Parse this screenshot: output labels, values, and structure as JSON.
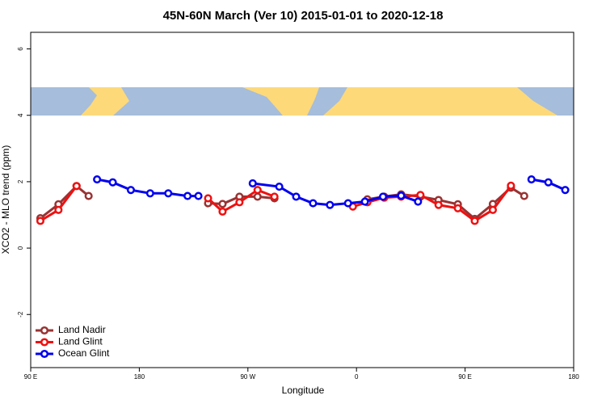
{
  "chart_data": {
    "type": "line",
    "title": "45N-60N March (Ver 10)   2015-01-01 to 2020-12-18",
    "x_label": "Longitude",
    "y_label": "XCO2 - MLO trend (ppm)",
    "xlim": [
      90,
      540
    ],
    "ylim": [
      -3.6,
      6.5
    ],
    "xticks": [
      {
        "value": 90,
        "label": "90 E"
      },
      180,
      {
        "value": 270,
        "label": "90 W"
      },
      {
        "value": 360,
        "label": "0"
      },
      {
        "value": 450,
        "label": "90 E"
      },
      {
        "value": 540,
        "label": "180"
      }
    ],
    "yticks": [
      -2,
      0,
      2,
      4,
      6
    ],
    "legend": "bottomleft",
    "series": [
      {
        "name": "Land Nadir",
        "color": "#993333",
        "x": [
          98,
          113,
          128,
          138,
          null,
          237,
          249,
          263,
          278,
          292,
          null,
          369,
          383,
          397,
          413,
          428,
          444,
          458,
          473,
          488,
          499
        ],
        "values": [
          0.9,
          1.32,
          1.87,
          1.57,
          null,
          1.35,
          1.33,
          1.55,
          1.55,
          1.5,
          null,
          1.47,
          1.55,
          1.62,
          1.55,
          1.45,
          1.32,
          0.88,
          1.33,
          1.82,
          1.57
        ]
      },
      {
        "name": "Land Glint",
        "color": "#ee1111",
        "x": [
          98,
          113,
          128,
          null,
          237,
          249,
          263,
          278,
          292,
          null,
          357,
          369,
          383,
          397,
          413,
          428,
          444,
          458,
          473,
          488
        ],
        "values": [
          0.82,
          1.15,
          1.87,
          null,
          1.5,
          1.1,
          1.38,
          1.75,
          1.55,
          null,
          1.25,
          1.38,
          1.52,
          1.55,
          1.6,
          1.3,
          1.2,
          0.82,
          1.15,
          1.88
        ]
      },
      {
        "name": "Ocean Glint",
        "color": "#0000ee",
        "x": [
          145,
          158,
          173,
          189,
          204,
          220,
          229,
          null,
          274,
          296,
          310,
          324,
          338,
          353,
          367,
          382,
          397,
          411,
          null,
          505,
          519,
          533
        ],
        "values": [
          2.07,
          1.98,
          1.75,
          1.65,
          1.65,
          1.57,
          1.57,
          null,
          1.95,
          1.85,
          1.55,
          1.35,
          1.3,
          1.35,
          1.4,
          1.55,
          1.58,
          1.4,
          null,
          2.07,
          1.98,
          1.75
        ]
      }
    ]
  }
}
